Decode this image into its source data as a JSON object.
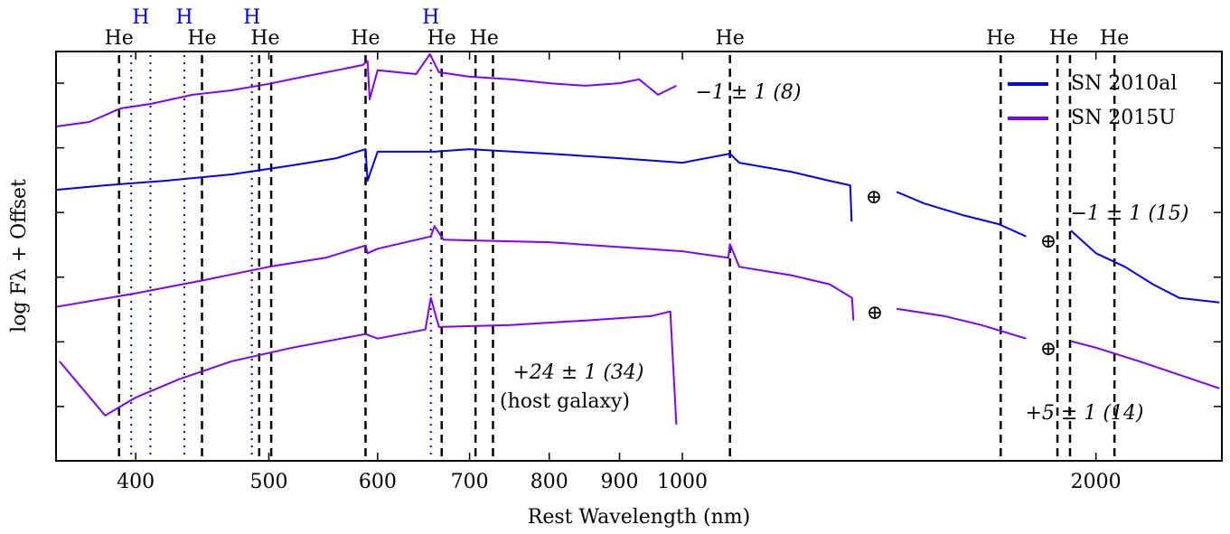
{
  "chart_data": {
    "type": "line",
    "xlabel": "Rest Wavelength (nm)",
    "ylabel": "log Fλ + Offset",
    "xscale": "log",
    "xlim": [
      350,
      2470
    ],
    "xticks": [
      400,
      500,
      600,
      700,
      800,
      900,
      1000,
      2000
    ],
    "ylim": [
      0.16,
      6.49
    ],
    "yticks": [
      1,
      2,
      3,
      4,
      5,
      6
    ],
    "legend": {
      "loc": "upper right",
      "entries": [
        {
          "name": "SN 2010al",
          "color": "#0000ff"
        },
        {
          "name": "SN 2015U",
          "color": "#8000ff"
        }
      ]
    },
    "series": [
      {
        "label": "−1 ± 1 (8)",
        "color": "#8000ff",
        "x": [
          350,
          370,
          390,
          410,
          440,
          470,
          500,
          530,
          560,
          585,
          590,
          592,
          600,
          640,
          655,
          665,
          700,
          750,
          800,
          850,
          900,
          930,
          960,
          990
        ],
        "values": [
          5.33,
          5.4,
          5.61,
          5.68,
          5.82,
          5.89,
          5.99,
          6.1,
          6.2,
          6.28,
          6.34,
          5.75,
          6.2,
          6.14,
          6.45,
          6.17,
          6.1,
          6.06,
          6.0,
          5.96,
          6.0,
          6.06,
          5.82,
          5.96
        ]
      },
      {
        "label": "−1 ± 1 (15)",
        "color": "#0000ff",
        "x": [
          350,
          380,
          420,
          470,
          520,
          560,
          588,
          590,
          600,
          660,
          700,
          800,
          900,
          1000,
          1083,
          1100,
          1200,
          1280,
          1325,
          1328,
          1380,
          1432,
          1500,
          1600,
          1700,
          1779,
          1850,
          1918,
          2000,
          2100,
          2200,
          2300,
          2460
        ],
        "values": [
          4.35,
          4.42,
          4.49,
          4.59,
          4.73,
          4.84,
          4.98,
          4.49,
          4.94,
          4.94,
          4.98,
          4.91,
          4.84,
          4.77,
          4.91,
          4.77,
          4.63,
          4.49,
          4.42,
          3.86,
          null,
          4.32,
          4.14,
          3.96,
          3.82,
          3.63,
          null,
          3.72,
          3.37,
          3.16,
          2.89,
          2.68,
          2.61
        ]
      },
      {
        "label": "+5 ± 1 (14)",
        "color": "#8000ff",
        "x": [
          350,
          400,
          450,
          500,
          550,
          588,
          590,
          600,
          656,
          660,
          670,
          800,
          1000,
          1080,
          1083,
          1100,
          1200,
          1280,
          1329,
          1332,
          1380,
          1432,
          1550,
          1650,
          1779,
          1850,
          1918,
          2000,
          2150,
          2300,
          2460
        ],
        "values": [
          2.54,
          2.75,
          2.96,
          3.16,
          3.3,
          3.49,
          3.37,
          3.44,
          3.63,
          3.79,
          3.58,
          3.54,
          3.4,
          3.3,
          3.51,
          3.16,
          3.03,
          2.89,
          2.68,
          2.33,
          null,
          2.51,
          2.4,
          2.26,
          2.05,
          null,
          2.01,
          1.91,
          1.7,
          1.49,
          1.28
        ]
      },
      {
        "label": "+24 ± 1 (34)",
        "note": "(host galaxy)",
        "color": "#8000ff",
        "x": [
          352,
          380,
          400,
          430,
          470,
          520,
          588,
          600,
          650,
          656,
          665,
          750,
          850,
          950,
          980,
          990
        ],
        "values": [
          1.7,
          0.86,
          1.14,
          1.42,
          1.7,
          1.91,
          2.12,
          2.05,
          2.19,
          2.68,
          2.23,
          2.26,
          2.33,
          2.4,
          2.47,
          0.72
        ]
      }
    ],
    "line_ids": [
      {
        "label": "He",
        "color": "#000000",
        "style": "dashed",
        "x": [
          389
        ]
      },
      {
        "label": "He",
        "color": "#000000",
        "style": "dashed",
        "x": [
          447
        ]
      },
      {
        "label": "He",
        "color": "#000000",
        "style": "dashed",
        "x": [
          492,
          502
        ]
      },
      {
        "label": "He",
        "color": "#000000",
        "style": "dashed",
        "x": [
          588
        ]
      },
      {
        "label": "He",
        "color": "#000000",
        "style": "dashed",
        "x": [
          668
        ]
      },
      {
        "label": "He",
        "color": "#000000",
        "style": "dashed",
        "x": [
          707,
          728
        ]
      },
      {
        "label": "He",
        "color": "#000000",
        "style": "dashed",
        "x": [
          1083
        ]
      },
      {
        "label": "He",
        "color": "#000000",
        "style": "dashed",
        "x": [
          1705
        ]
      },
      {
        "label": "He",
        "color": "#000000",
        "style": "dashed",
        "x": [
          1875,
          1915
        ]
      },
      {
        "label": "He",
        "color": "#000000",
        "style": "dashed",
        "x": [
          2063
        ]
      },
      {
        "label": "H",
        "color": "#0000ff",
        "style": "dotted",
        "x": [
          397,
          410
        ]
      },
      {
        "label": "H",
        "color": "#0000ff",
        "style": "dotted",
        "x": [
          434
        ]
      },
      {
        "label": "H",
        "color": "#0000ff",
        "style": "dotted",
        "x": [
          486
        ]
      },
      {
        "label": "H",
        "color": "#0000ff",
        "style": "dotted",
        "x": [
          656
        ]
      }
    ],
    "telluric": [
      "⊕",
      "⊕",
      "⊕",
      "⊕"
    ]
  }
}
